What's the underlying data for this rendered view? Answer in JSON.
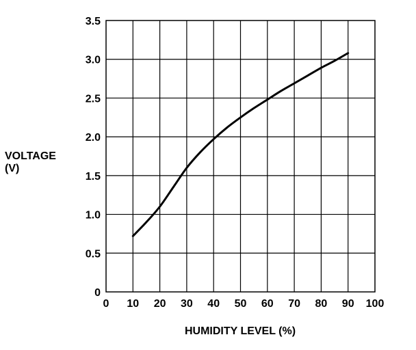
{
  "chart_data": {
    "type": "line",
    "title": "",
    "xlabel": "HUMIDITY LEVEL (%)",
    "ylabel_lines": [
      "VOLTAGE",
      "(V)"
    ],
    "xlim": [
      0,
      100
    ],
    "ylim": [
      0,
      3.5
    ],
    "x_ticks": [
      "0",
      "10",
      "20",
      "30",
      "40",
      "50",
      "60",
      "70",
      "80",
      "90",
      "100"
    ],
    "y_ticks": [
      "0",
      "0.5",
      "1.0",
      "1.5",
      "2.0",
      "2.5",
      "3.0",
      "3.5"
    ],
    "grid": true,
    "line_color": "#000000",
    "series": [
      {
        "x": [
          10,
          15,
          20,
          25,
          30,
          35,
          40,
          45,
          50,
          55,
          60,
          65,
          70,
          75,
          80,
          85,
          90
        ],
        "values": [
          0.72,
          0.9,
          1.1,
          1.35,
          1.6,
          1.8,
          1.97,
          2.12,
          2.25,
          2.37,
          2.48,
          2.59,
          2.69,
          2.79,
          2.89,
          2.98,
          3.08
        ]
      }
    ]
  }
}
